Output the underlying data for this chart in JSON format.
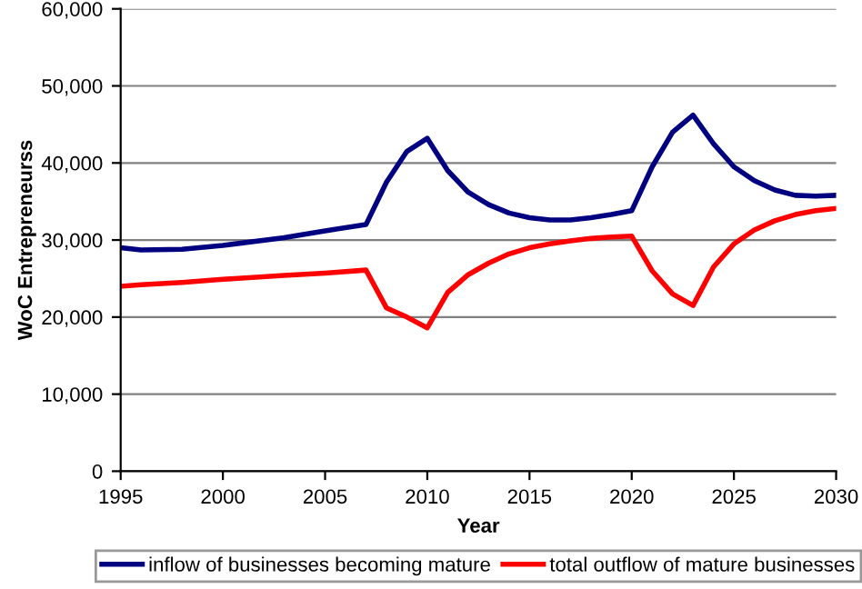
{
  "chart_data": {
    "type": "line",
    "xlabel": "Year",
    "ylabel": "WoC Entrepreneurss",
    "x": [
      1995,
      1996,
      1998,
      2000,
      2003,
      2005,
      2007,
      2008,
      2009,
      2010,
      2011,
      2012,
      2013,
      2014,
      2015,
      2016,
      2017,
      2018,
      2019,
      2020,
      2021,
      2022,
      2023,
      2024,
      2025,
      2026,
      2027,
      2028,
      2029,
      2030
    ],
    "series": [
      {
        "name": "inflow of businesses becoming mature",
        "color": "#000080",
        "values": [
          29000,
          28700,
          28800,
          29300,
          30300,
          31200,
          32000,
          37500,
          41500,
          43200,
          39000,
          36200,
          34600,
          33500,
          32900,
          32600,
          32600,
          32900,
          33300,
          33800,
          39500,
          44000,
          46200,
          42500,
          39500,
          37700,
          36500,
          35800,
          35700,
          35800
        ]
      },
      {
        "name": "total outflow of mature businesses",
        "color": "#ff0000",
        "values": [
          24000,
          24200,
          24500,
          24900,
          25400,
          25700,
          26100,
          21200,
          20000,
          18600,
          23200,
          25500,
          27000,
          28200,
          29000,
          29500,
          29900,
          30200,
          30400,
          30500,
          26000,
          23000,
          21500,
          26500,
          29500,
          31300,
          32500,
          33300,
          33800,
          34100
        ]
      }
    ],
    "xlim": [
      1995,
      2030
    ],
    "xticks": [
      1995,
      2000,
      2005,
      2010,
      2015,
      2020,
      2025,
      2030
    ],
    "ylim": [
      0,
      60000
    ],
    "yticks": [
      {
        "value": 0,
        "label": "0"
      },
      {
        "value": 10000,
        "label": "10,000"
      },
      {
        "value": 20000,
        "label": "20,000"
      },
      {
        "value": 30000,
        "label": "30,000"
      },
      {
        "value": 40000,
        "label": "40,000"
      },
      {
        "value": 50000,
        "label": "50,000"
      },
      {
        "value": 60000,
        "label": "60,000"
      }
    ],
    "grid": "y",
    "legend": "bottom"
  }
}
